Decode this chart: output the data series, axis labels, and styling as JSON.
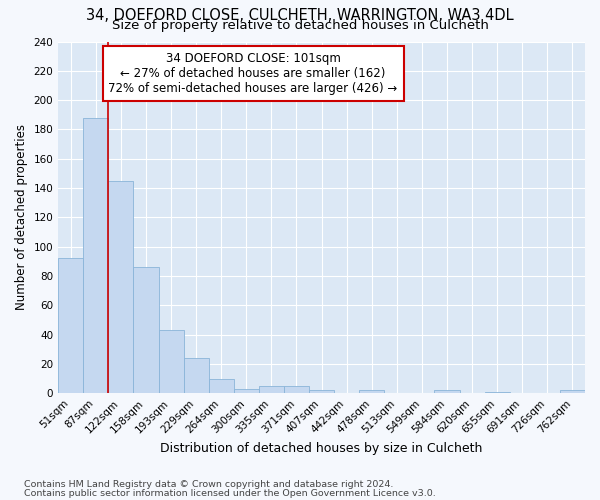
{
  "title1": "34, DOEFORD CLOSE, CULCHETH, WARRINGTON, WA3 4DL",
  "title2": "Size of property relative to detached houses in Culcheth",
  "xlabel": "Distribution of detached houses by size in Culcheth",
  "ylabel": "Number of detached properties",
  "footnote1": "Contains HM Land Registry data © Crown copyright and database right 2024.",
  "footnote2": "Contains public sector information licensed under the Open Government Licence v3.0.",
  "categories": [
    "51sqm",
    "87sqm",
    "122sqm",
    "158sqm",
    "193sqm",
    "229sqm",
    "264sqm",
    "300sqm",
    "335sqm",
    "371sqm",
    "407sqm",
    "442sqm",
    "478sqm",
    "513sqm",
    "549sqm",
    "584sqm",
    "620sqm",
    "655sqm",
    "691sqm",
    "726sqm",
    "762sqm"
  ],
  "values": [
    92,
    188,
    145,
    86,
    43,
    24,
    10,
    3,
    5,
    5,
    2,
    0,
    2,
    0,
    0,
    2,
    0,
    1,
    0,
    0,
    2
  ],
  "bar_color": "#c5d8f0",
  "bar_edge_color": "#8ab4d8",
  "red_line_x": 1.5,
  "annotation_title": "34 DOEFORD CLOSE: 101sqm",
  "annotation_line1": "← 27% of detached houses are smaller (162)",
  "annotation_line2": "72% of semi-detached houses are larger (426) →",
  "annotation_box_color": "#ffffff",
  "annotation_box_edge": "#cc0000",
  "red_line_color": "#cc0000",
  "ylim": [
    0,
    240
  ],
  "yticks": [
    0,
    20,
    40,
    60,
    80,
    100,
    120,
    140,
    160,
    180,
    200,
    220,
    240
  ],
  "plot_bg_color": "#dce8f5",
  "fig_bg_color": "#f5f8fd",
  "grid_color": "#ffffff",
  "title1_fontsize": 10.5,
  "title2_fontsize": 9.5,
  "xlabel_fontsize": 9,
  "ylabel_fontsize": 8.5,
  "tick_fontsize": 7.5,
  "annotation_fontsize": 8.5,
  "footnote_fontsize": 6.8
}
